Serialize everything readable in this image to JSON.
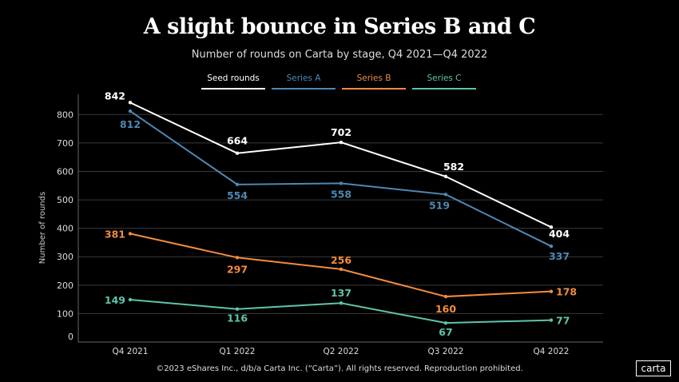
{
  "chart_data": {
    "type": "line",
    "title": "A slight bounce in Series B and C",
    "subtitle": "Number of rounds on Carta by stage, Q4 2021—Q4 2022",
    "xlabel": "",
    "ylabel": "Number of rounds",
    "categories": [
      "Q4 2021",
      "Q1 2022",
      "Q2 2022",
      "Q3 2022",
      "Q4 2022"
    ],
    "ylim": [
      0,
      800
    ],
    "yticks": [
      0,
      100,
      200,
      300,
      400,
      500,
      600,
      700,
      800
    ],
    "grid": true,
    "legend": "top",
    "series": [
      {
        "name": "Seed rounds",
        "color": "#ffffff",
        "values": [
          842,
          664,
          702,
          582,
          404
        ]
      },
      {
        "name": "Series A",
        "color": "#4e88b4",
        "values": [
          812,
          554,
          558,
          519,
          337
        ]
      },
      {
        "name": "Series B",
        "color": "#f28c3f",
        "values": [
          381,
          297,
          256,
          160,
          178
        ]
      },
      {
        "name": "Series C",
        "color": "#5ec4ac",
        "values": [
          149,
          116,
          137,
          67,
          77
        ]
      }
    ]
  },
  "footer": "©2023 eShares Inc., d/b/a Carta Inc. (“Carta”). All rights reserved. Reproduction prohibited.",
  "logo": "carta"
}
